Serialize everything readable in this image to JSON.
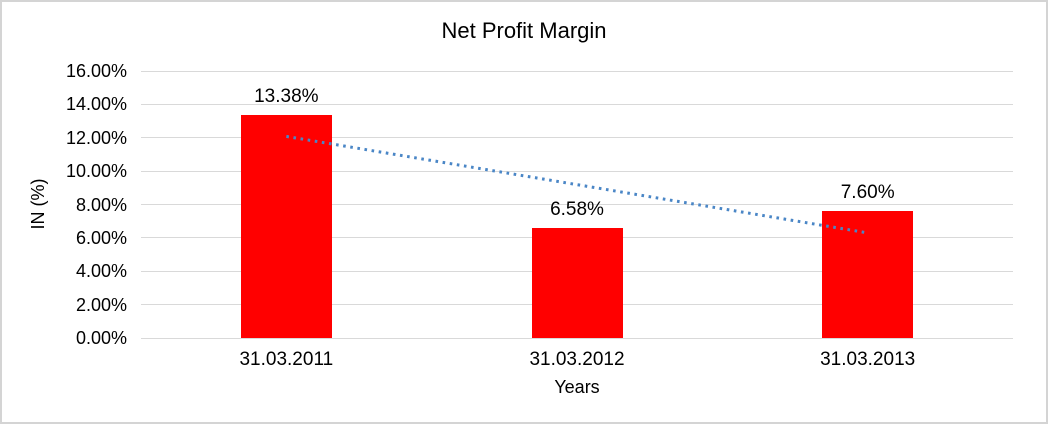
{
  "chart_data": {
    "type": "bar",
    "title": "Net Profit Margin",
    "xlabel": "Years",
    "ylabel": "IN (%)",
    "categories": [
      "31.03.2011",
      "31.03.2012",
      "31.03.2013"
    ],
    "values": [
      13.38,
      6.58,
      7.6
    ],
    "data_labels": [
      "13.38%",
      "6.58%",
      "7.60%"
    ],
    "y_ticks": [
      "0.00%",
      "2.00%",
      "4.00%",
      "6.00%",
      "8.00%",
      "10.00%",
      "12.00%",
      "14.00%",
      "16.00%"
    ],
    "ylim": [
      0,
      16
    ],
    "grid": true,
    "legend": "none",
    "bar_color": "#ff0000",
    "gridline_color": "#d9d9d9",
    "text_color": "#000000",
    "trendline": {
      "type": "linear",
      "style": "dotted",
      "color": "#4a86c6",
      "start_value": 12.08,
      "end_value": 6.3
    }
  }
}
